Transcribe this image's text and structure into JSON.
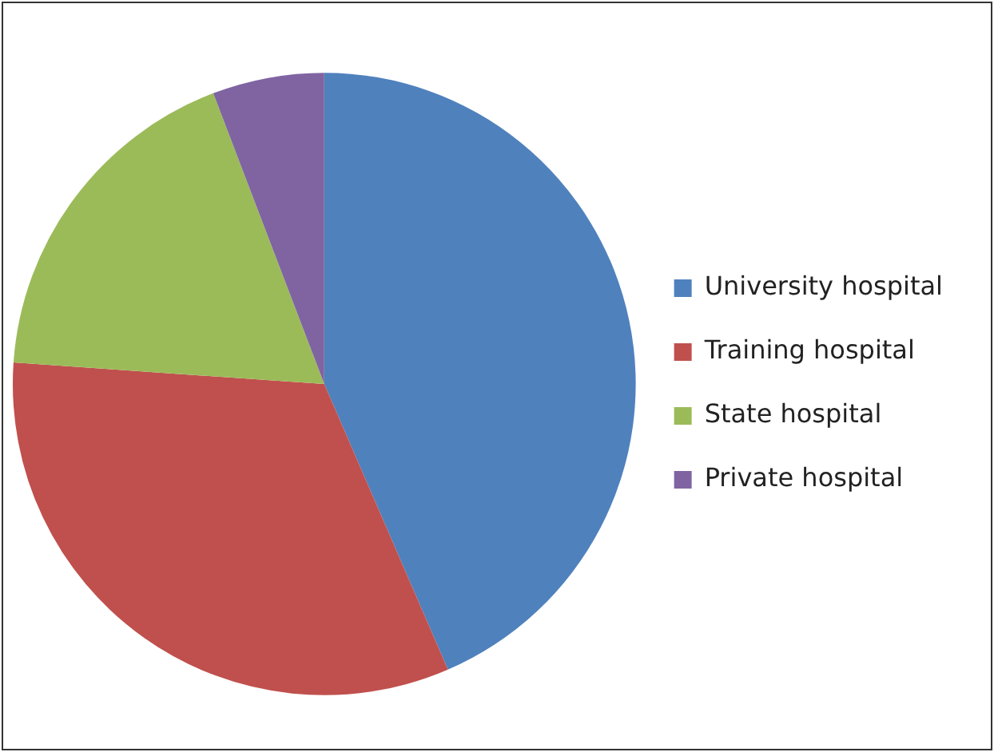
{
  "chart_data": {
    "type": "pie",
    "categories": [
      "University hospital",
      "Training hospital",
      "State hospital",
      "Private hospital"
    ],
    "values": [
      43.5,
      32.6,
      18.1,
      5.8
    ],
    "colors": [
      "#4f81bd",
      "#c0504d",
      "#9bbb59",
      "#8064a2"
    ],
    "legend": "right"
  }
}
